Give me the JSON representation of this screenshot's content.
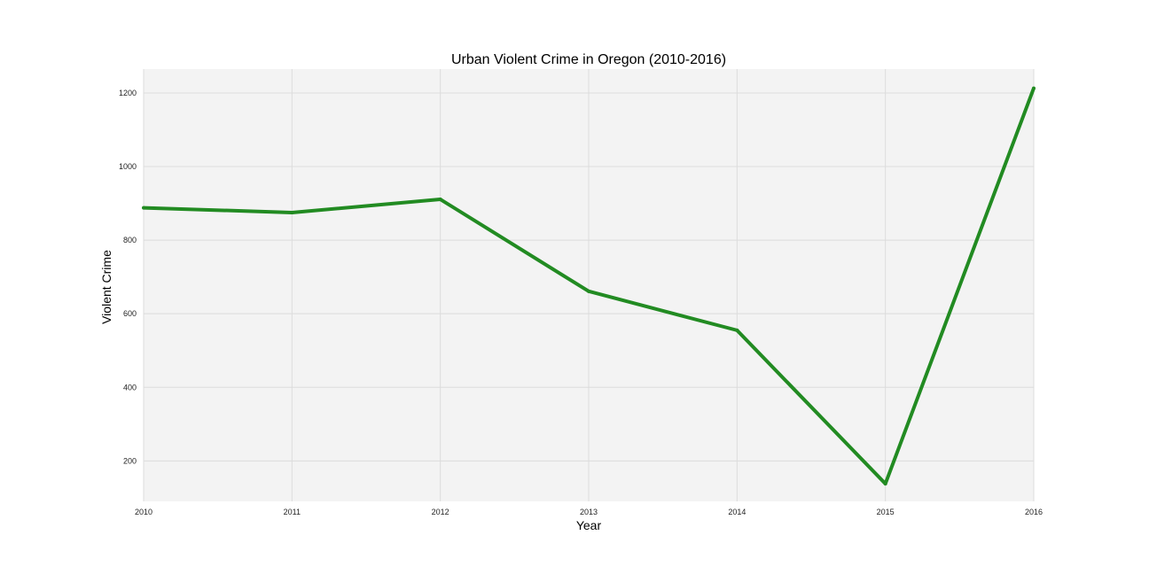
{
  "chart_data": {
    "type": "line",
    "title": "Urban Violent Crime in Oregon (2010-2016)",
    "xlabel": "Year",
    "ylabel": "Violent Crime",
    "x": [
      2010,
      2011,
      2012,
      2013,
      2014,
      2015,
      2016
    ],
    "xlim": [
      2010,
      2016
    ],
    "ylim": [
      90,
      1265
    ],
    "yticks": [
      200,
      400,
      600,
      800,
      1000,
      1200
    ],
    "grid": true,
    "series": [
      {
        "values": [
          888,
          875,
          911,
          661,
          555,
          138,
          1213
        ],
        "color": "#228b22"
      }
    ],
    "plot_background": "#f3f3f3"
  }
}
